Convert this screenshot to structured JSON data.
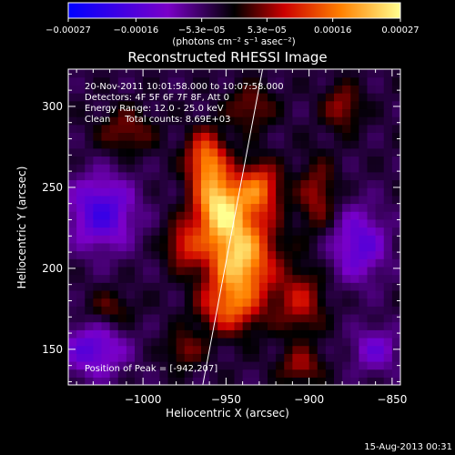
{
  "chart_data": {
    "type": "heatmap",
    "title": "Reconstructed RHESSI Image",
    "xlabel": "Heliocentric X (arcsec)",
    "ylabel": "Heliocentric Y (arcsec)",
    "xlim": [
      -1045,
      -845
    ],
    "ylim": [
      128,
      323
    ],
    "x_ticks": [
      -1000,
      -950,
      -900,
      -850
    ],
    "x_tick_labels": [
      "−1000",
      "−950",
      "−900",
      "−850"
    ],
    "y_ticks": [
      150,
      200,
      250,
      300
    ],
    "y_tick_labels": [
      "150",
      "200",
      "250",
      "300"
    ],
    "colorbar": {
      "range": [
        -0.00027,
        0.00027
      ],
      "ticks": [
        -0.00027,
        -0.00016,
        -5.3e-05,
        5.3e-05,
        0.00016,
        0.00027
      ],
      "tick_labels": [
        "−0.00027",
        "−0.00016",
        "−5.3e−05",
        "5.3e−05",
        "0.00016",
        "0.00027"
      ],
      "unit_label": "(photons cm⁻² s⁻¹ asec⁻²)",
      "colors": [
        "#0000ff",
        "#7a00c8",
        "#000000",
        "#cc0000",
        "#ff8000",
        "#ffff90"
      ]
    },
    "annotations": {
      "time": "20-Nov-2011 10:01:58.000 to 10:07:58.000",
      "detectors": "Detectors: 4F 5F 6F 7F 8F, Att 0",
      "energy": "Energy Range: 12.0 - 25.0 keV",
      "clean": "Clean     Total counts: 8.69E+03",
      "peak": "Position of Peak = [-942,207]"
    },
    "peak": {
      "x": -942,
      "y": 207
    },
    "limb_line": [
      [
        -964,
        128
      ],
      [
        -928,
        323
      ]
    ],
    "sources": [
      {
        "x": -942,
        "y": 207,
        "amp": 1.0,
        "sx": 14,
        "sy": 22
      },
      {
        "x": -955,
        "y": 240,
        "amp": 0.85,
        "sx": 10,
        "sy": 14
      },
      {
        "x": -962,
        "y": 268,
        "amp": 0.7,
        "sx": 8,
        "sy": 12
      },
      {
        "x": -930,
        "y": 250,
        "amp": 0.6,
        "sx": 9,
        "sy": 11
      },
      {
        "x": -975,
        "y": 215,
        "amp": 0.45,
        "sx": 8,
        "sy": 10
      },
      {
        "x": -950,
        "y": 175,
        "amp": 0.4,
        "sx": 12,
        "sy": 10
      },
      {
        "x": -905,
        "y": 180,
        "amp": 0.4,
        "sx": 10,
        "sy": 14
      },
      {
        "x": -895,
        "y": 245,
        "amp": 0.35,
        "sx": 8,
        "sy": 16
      },
      {
        "x": -880,
        "y": 300,
        "amp": 0.35,
        "sx": 8,
        "sy": 10
      },
      {
        "x": -1010,
        "y": 285,
        "amp": 0.3,
        "sx": 12,
        "sy": 10
      },
      {
        "x": -1020,
        "y": 175,
        "amp": 0.25,
        "sx": 10,
        "sy": 8
      },
      {
        "x": -975,
        "y": 150,
        "amp": 0.3,
        "sx": 8,
        "sy": 8
      },
      {
        "x": -905,
        "y": 140,
        "amp": 0.35,
        "sx": 9,
        "sy": 8
      },
      {
        "x": -935,
        "y": 300,
        "amp": 0.3,
        "sx": 10,
        "sy": 10
      },
      {
        "x": -1025,
        "y": 235,
        "amp": -0.55,
        "sx": 14,
        "sy": 16
      },
      {
        "x": -870,
        "y": 215,
        "amp": -0.45,
        "sx": 12,
        "sy": 16
      },
      {
        "x": -1030,
        "y": 150,
        "amp": -0.45,
        "sx": 14,
        "sy": 12
      },
      {
        "x": -860,
        "y": 150,
        "amp": -0.35,
        "sx": 10,
        "sy": 10
      }
    ]
  },
  "footer": {
    "date": "15-Aug-2013 00:31"
  }
}
